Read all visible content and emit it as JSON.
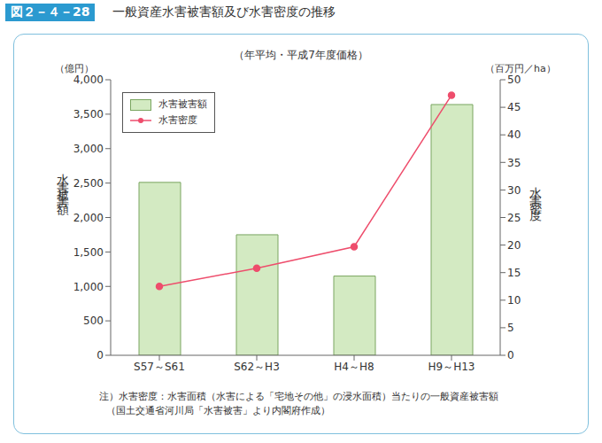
{
  "chart_data": {
    "type": "bar",
    "figure_label": "図２－４－28",
    "title": "一般資産水害被害額及び水害密度の推移",
    "subtitle": "（年平均・平成7年度価格）",
    "ylabel": "水害被害額",
    "y_unit": "（億円）",
    "y2label": "水害密度",
    "y2_unit": "（百万円／ha）",
    "categories": [
      "S57～S61",
      "S62～H3",
      "H4～H8",
      "H9～H13"
    ],
    "series": [
      {
        "name": "水害被害額",
        "type": "bar",
        "color": "#d3eac2",
        "values": [
          2510,
          1750,
          1150,
          3640
        ]
      },
      {
        "name": "水害密度",
        "type": "line",
        "axis": "y2",
        "color": "#ee4d6c",
        "marker": "circle",
        "values": [
          12.5,
          15.8,
          19.7,
          47.2
        ]
      }
    ],
    "ylim": [
      0,
      4000
    ],
    "yticks": [
      0,
      500,
      {
        "value": 1000,
        "label": "1,000"
      },
      {
        "value": 1500,
        "label": "1,500"
      },
      {
        "value": 2000,
        "label": "2,000"
      },
      {
        "value": 2500,
        "label": "2,500"
      },
      {
        "value": 3000,
        "label": "3,000"
      },
      {
        "value": 3500,
        "label": "3,500"
      },
      {
        "value": 4000,
        "label": "4,000"
      }
    ],
    "y2lim": [
      0,
      50
    ],
    "y2ticks": [
      0,
      5,
      10,
      15,
      20,
      25,
      30,
      35,
      40,
      45,
      50
    ],
    "grid": false,
    "legend": "upper left",
    "notes": [
      "注）水害密度：水害面積（水害による「宅地その他」の浸水面積）当たりの一般資産被害額",
      "（国土交通省河川局「水害被害」より内閣府作成）"
    ]
  }
}
